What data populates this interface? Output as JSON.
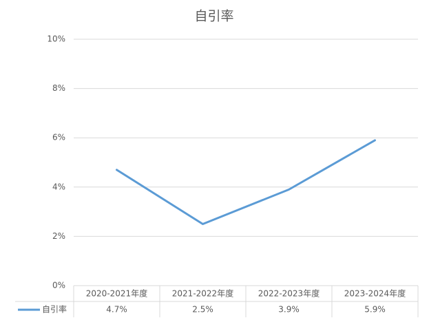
{
  "chart_data": {
    "type": "line",
    "title": "自引率",
    "categories": [
      "2020-2021年度",
      "2021-2022年度",
      "2022-2023年度",
      "2023-2024年度"
    ],
    "series": [
      {
        "name": "自引率",
        "color": "#5b9bd5",
        "values": [
          4.7,
          2.5,
          3.9,
          5.9
        ],
        "value_labels": [
          "4.7%",
          "2.5%",
          "3.9%",
          "5.9%"
        ]
      }
    ],
    "ylim": [
      0,
      10
    ],
    "yticks": [
      {
        "value": 0,
        "label": "0%"
      },
      {
        "value": 2,
        "label": "2%"
      },
      {
        "value": 4,
        "label": "4%"
      },
      {
        "value": 6,
        "label": "6%"
      },
      {
        "value": 8,
        "label": "8%"
      },
      {
        "value": 10,
        "label": "10%"
      }
    ],
    "grid": true,
    "data_table": true
  }
}
